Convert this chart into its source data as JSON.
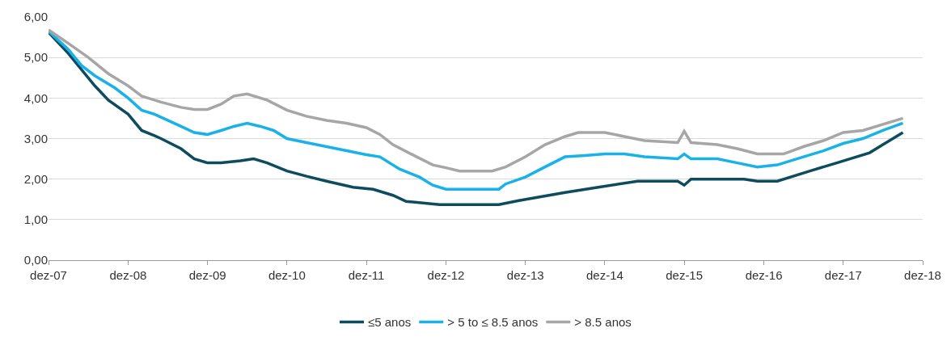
{
  "chart_data": {
    "type": "line",
    "xlim": [
      "2007-12",
      "2018-12"
    ],
    "xticks": [
      {
        "value": "2007-12",
        "label": "dez-07"
      },
      {
        "value": "2008-12",
        "label": "dez-08"
      },
      {
        "value": "2009-12",
        "label": "dez-09"
      },
      {
        "value": "2010-12",
        "label": "dez-10"
      },
      {
        "value": "2011-12",
        "label": "dez-11"
      },
      {
        "value": "2012-12",
        "label": "dez-12"
      },
      {
        "value": "2013-12",
        "label": "dez-13"
      },
      {
        "value": "2014-12",
        "label": "dez-14"
      },
      {
        "value": "2015-12",
        "label": "dez-15"
      },
      {
        "value": "2016-12",
        "label": "dez-16"
      },
      {
        "value": "2017-12",
        "label": "dez-17"
      },
      {
        "value": "2018-12",
        "label": "dez-18"
      }
    ],
    "ylim": [
      0,
      6
    ],
    "yticks": [
      {
        "value": 0,
        "label": "0,00"
      },
      {
        "value": 1,
        "label": "1,00"
      },
      {
        "value": 2,
        "label": "2,00"
      },
      {
        "value": 3,
        "label": "3,00"
      },
      {
        "value": 4,
        "label": "4,00"
      },
      {
        "value": 5,
        "label": "5,00"
      },
      {
        "value": 6,
        "label": "6,00"
      }
    ],
    "grid": "y",
    "legend": "bottom",
    "marker": "none",
    "line_style": "solid",
    "series": [
      {
        "name": "≤5 anos",
        "color": "#0d4b5e",
        "x": [
          "2007-12",
          "2008-03",
          "2008-07",
          "2008-09",
          "2008-12",
          "2009-02",
          "2009-04",
          "2009-05",
          "2009-08",
          "2009-10",
          "2009-12",
          "2010-02",
          "2010-05",
          "2010-07",
          "2010-09",
          "2010-12",
          "2011-03",
          "2011-06",
          "2011-10",
          "2012-01",
          "2012-04",
          "2012-06",
          "2012-11",
          "2013-08",
          "2013-11",
          "2014-06",
          "2014-11",
          "2015-05",
          "2015-11",
          "2015-12",
          "2016-01",
          "2016-09",
          "2016-11",
          "2017-02",
          "2017-07",
          "2017-11",
          "2018-04",
          "2018-06",
          "2018-09"
        ],
        "values": [
          5.62,
          5.1,
          4.3,
          3.95,
          3.6,
          3.2,
          3.07,
          3.0,
          2.75,
          2.5,
          2.4,
          2.4,
          2.45,
          2.5,
          2.4,
          2.2,
          2.07,
          1.95,
          1.8,
          1.75,
          1.6,
          1.45,
          1.37,
          1.37,
          1.47,
          1.67,
          1.8,
          1.95,
          1.95,
          1.85,
          2.0,
          2.0,
          1.95,
          1.95,
          2.2,
          2.4,
          2.65,
          2.85,
          3.15
        ]
      },
      {
        "name": "> 5 to ≤ 8.5 anos",
        "color": "#19b2e8",
        "x": [
          "2007-12",
          "2008-03",
          "2008-05",
          "2008-07",
          "2008-10",
          "2008-12",
          "2009-02",
          "2009-04",
          "2009-06",
          "2009-08",
          "2009-10",
          "2009-12",
          "2010-02",
          "2010-04",
          "2010-06",
          "2010-08",
          "2010-10",
          "2010-12",
          "2011-03",
          "2011-06",
          "2011-09",
          "2011-12",
          "2012-02",
          "2012-05",
          "2012-08",
          "2012-10",
          "2012-12",
          "2013-08",
          "2013-09",
          "2013-12",
          "2014-03",
          "2014-06",
          "2014-09",
          "2014-12",
          "2015-03",
          "2015-06",
          "2015-11",
          "2015-12",
          "2016-01",
          "2016-05",
          "2016-08",
          "2016-11",
          "2017-02",
          "2017-06",
          "2017-09",
          "2017-12",
          "2018-03",
          "2018-06",
          "2018-09"
        ],
        "values": [
          5.65,
          5.2,
          4.8,
          4.55,
          4.25,
          4.0,
          3.7,
          3.6,
          3.45,
          3.3,
          3.15,
          3.1,
          3.2,
          3.3,
          3.38,
          3.3,
          3.2,
          3.0,
          2.9,
          2.8,
          2.7,
          2.6,
          2.55,
          2.25,
          2.05,
          1.85,
          1.75,
          1.75,
          1.88,
          2.05,
          2.3,
          2.55,
          2.58,
          2.62,
          2.62,
          2.55,
          2.5,
          2.62,
          2.5,
          2.5,
          2.4,
          2.3,
          2.35,
          2.55,
          2.7,
          2.88,
          3.0,
          3.2,
          3.38
        ]
      },
      {
        "name": "> 8.5 anos",
        "color": "#a6a6a6",
        "x": [
          "2007-12",
          "2008-03",
          "2008-06",
          "2008-09",
          "2008-12",
          "2009-02",
          "2009-05",
          "2009-08",
          "2009-10",
          "2009-12",
          "2010-02",
          "2010-04",
          "2010-06",
          "2010-09",
          "2010-12",
          "2011-03",
          "2011-06",
          "2011-09",
          "2011-12",
          "2012-02",
          "2012-04",
          "2012-07",
          "2012-10",
          "2012-12",
          "2013-02",
          "2013-07",
          "2013-09",
          "2013-12",
          "2014-03",
          "2014-06",
          "2014-08",
          "2014-12",
          "2015-03",
          "2015-06",
          "2015-11",
          "2015-12",
          "2016-01",
          "2016-05",
          "2016-08",
          "2016-11",
          "2017-03",
          "2017-06",
          "2017-09",
          "2017-12",
          "2018-03",
          "2018-09"
        ],
        "values": [
          5.68,
          5.35,
          5.0,
          4.6,
          4.3,
          4.05,
          3.9,
          3.77,
          3.72,
          3.72,
          3.85,
          4.05,
          4.1,
          3.95,
          3.7,
          3.55,
          3.45,
          3.38,
          3.27,
          3.1,
          2.85,
          2.6,
          2.35,
          2.28,
          2.2,
          2.2,
          2.3,
          2.55,
          2.85,
          3.05,
          3.15,
          3.15,
          3.05,
          2.95,
          2.9,
          3.18,
          2.9,
          2.85,
          2.75,
          2.62,
          2.62,
          2.8,
          2.95,
          3.15,
          3.2,
          3.5
        ]
      }
    ]
  }
}
